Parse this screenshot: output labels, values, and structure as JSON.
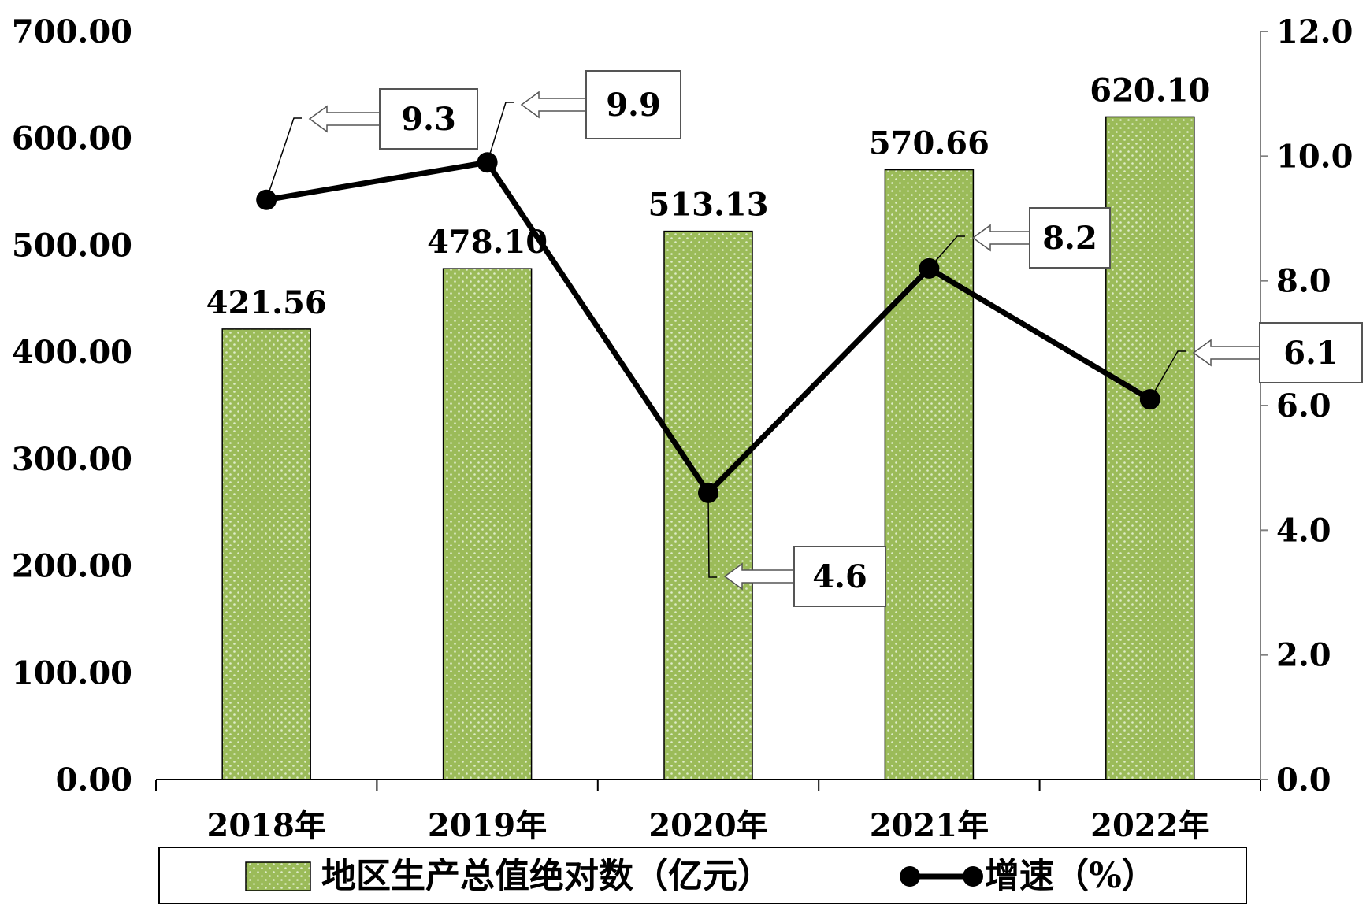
{
  "chart_data": {
    "type": "bar",
    "categories": [
      "2018年",
      "2019年",
      "2020年",
      "2021年",
      "2022年"
    ],
    "series": [
      {
        "name": "地区生产总值绝对数（亿元）",
        "type": "bar",
        "axis": "left",
        "values": [
          421.56,
          478.1,
          513.13,
          570.66,
          620.1
        ],
        "value_labels": [
          "421.56",
          "478.10",
          "513.13",
          "570.66",
          "620.10"
        ]
      },
      {
        "name": "增速（%）",
        "type": "line",
        "axis": "right",
        "values": [
          9.3,
          9.9,
          4.6,
          8.2,
          6.1
        ],
        "value_labels": [
          "9.3",
          "9.9",
          "4.6",
          "8.2",
          "6.1"
        ]
      }
    ],
    "y_left": {
      "range": [
        0,
        700
      ],
      "ticks": [
        "0.00",
        "100.00",
        "200.00",
        "300.00",
        "400.00",
        "500.00",
        "600.00",
        "700.00"
      ]
    },
    "y_right": {
      "range": [
        0,
        12
      ],
      "ticks": [
        "0.0",
        "2.0",
        "4.0",
        "6.0",
        "8.0",
        "10.0",
        "12.0"
      ]
    },
    "legend_position": "bottom",
    "grid": false,
    "colors": {
      "bar_fill": "#9bbb59",
      "bar_dots": "#dfeccb",
      "line": "#000000",
      "axis": "#000000",
      "right_axis": "#808080"
    }
  }
}
